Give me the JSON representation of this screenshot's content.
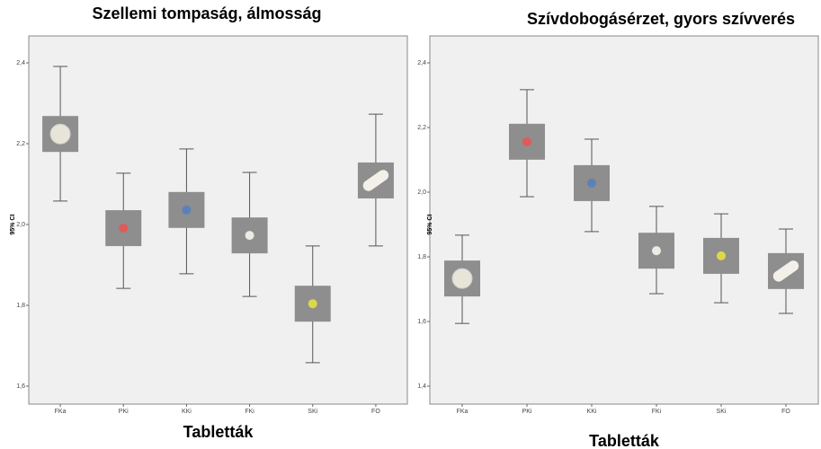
{
  "chart_data": [
    {
      "type": "errorbar",
      "title": "Szellemi tompaság, álmosság",
      "x_label": "Tabletták",
      "y_label": "95% CI",
      "categories": [
        "FKa",
        "PKi",
        "KKi",
        "FKi",
        "SKi",
        "FO"
      ],
      "values": [
        2.224,
        1.991,
        2.036,
        1.973,
        1.804,
        2.109
      ],
      "lower": [
        2.058,
        1.842,
        1.878,
        1.822,
        1.658,
        1.947
      ],
      "upper": [
        2.391,
        2.127,
        2.187,
        2.129,
        1.947,
        2.273
      ],
      "colors": [
        "#e8e4d8",
        "#e05a5a",
        "#5b82b8",
        "#ecebe4",
        "#dcd84a",
        "#f2f0e8"
      ],
      "ylim": [
        1.6,
        2.4
      ],
      "yticks": [
        {
          "value": 1.6,
          "label": "1,6"
        },
        {
          "value": 1.8,
          "label": "1,8"
        },
        {
          "value": 2.0,
          "label": "2,0"
        },
        {
          "value": 2.2,
          "label": "2,2"
        },
        {
          "value": 2.4,
          "label": "2,4"
        }
      ]
    },
    {
      "type": "errorbar",
      "title": "Szívdobogásérzet, gyors szívverés",
      "x_label": "Tabletták",
      "y_label": "95% CI",
      "categories": [
        "FKa",
        "PKi",
        "KKi",
        "FKi",
        "SKi",
        "FO"
      ],
      "values": [
        1.733,
        2.156,
        2.028,
        1.819,
        1.803,
        1.756
      ],
      "lower": [
        1.594,
        1.986,
        1.878,
        1.686,
        1.658,
        1.625
      ],
      "upper": [
        1.867,
        2.317,
        2.164,
        1.956,
        1.933,
        1.886
      ],
      "colors": [
        "#e8e4d8",
        "#e05a5a",
        "#5b82b8",
        "#ecebe4",
        "#dcd84a",
        "#f2f0e8"
      ],
      "ylim": [
        1.4,
        2.4
      ],
      "yticks": [
        {
          "value": 1.4,
          "label": "1,4"
        },
        {
          "value": 1.6,
          "label": "1,6"
        },
        {
          "value": 1.8,
          "label": "1,8"
        },
        {
          "value": 2.0,
          "label": "2,0"
        },
        {
          "value": 2.2,
          "label": "2,2"
        },
        {
          "value": 2.4,
          "label": "2,4"
        }
      ]
    }
  ]
}
